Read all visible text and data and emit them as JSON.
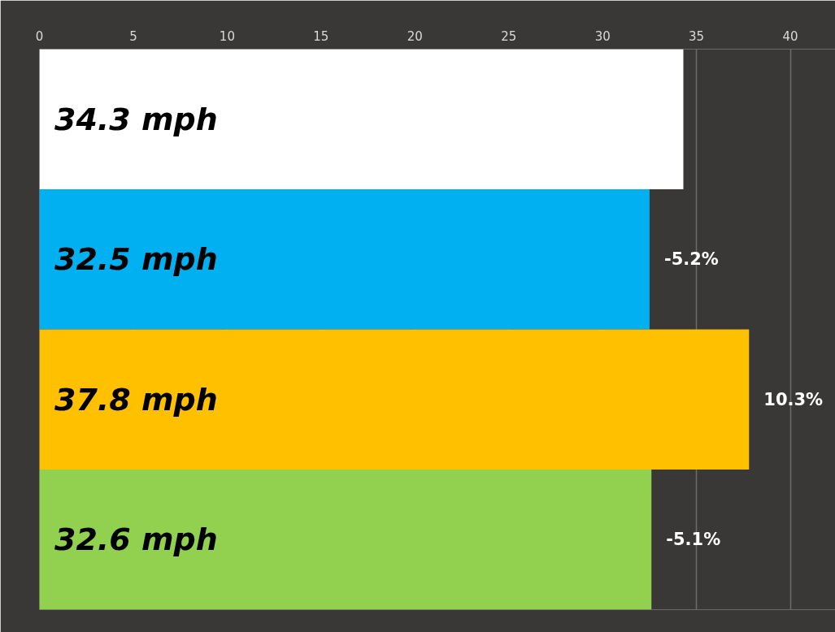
{
  "chart_data": {
    "type": "bar",
    "orientation": "horizontal",
    "categories": [
      null,
      null,
      null,
      null
    ],
    "values": [
      34.3,
      32.5,
      37.8,
      32.6
    ],
    "colors": [
      "#ffffff",
      "#00b0f0",
      "#ffc000",
      "#92d050"
    ],
    "value_labels": [
      "34.3 mph",
      "32.5 mph",
      "37.8 mph",
      "32.6 mph"
    ],
    "annotations": [
      {
        "text": "-5.2%",
        "x": 32.5
      },
      {
        "text": "10.3%",
        "x": 37.8
      },
      {
        "text": "-5.1%",
        "x": 32.6
      }
    ],
    "xlim": [
      0,
      42.4
    ],
    "xticks": [
      0,
      5,
      10,
      15,
      20,
      25,
      30,
      35,
      40
    ],
    "grid": "x"
  }
}
